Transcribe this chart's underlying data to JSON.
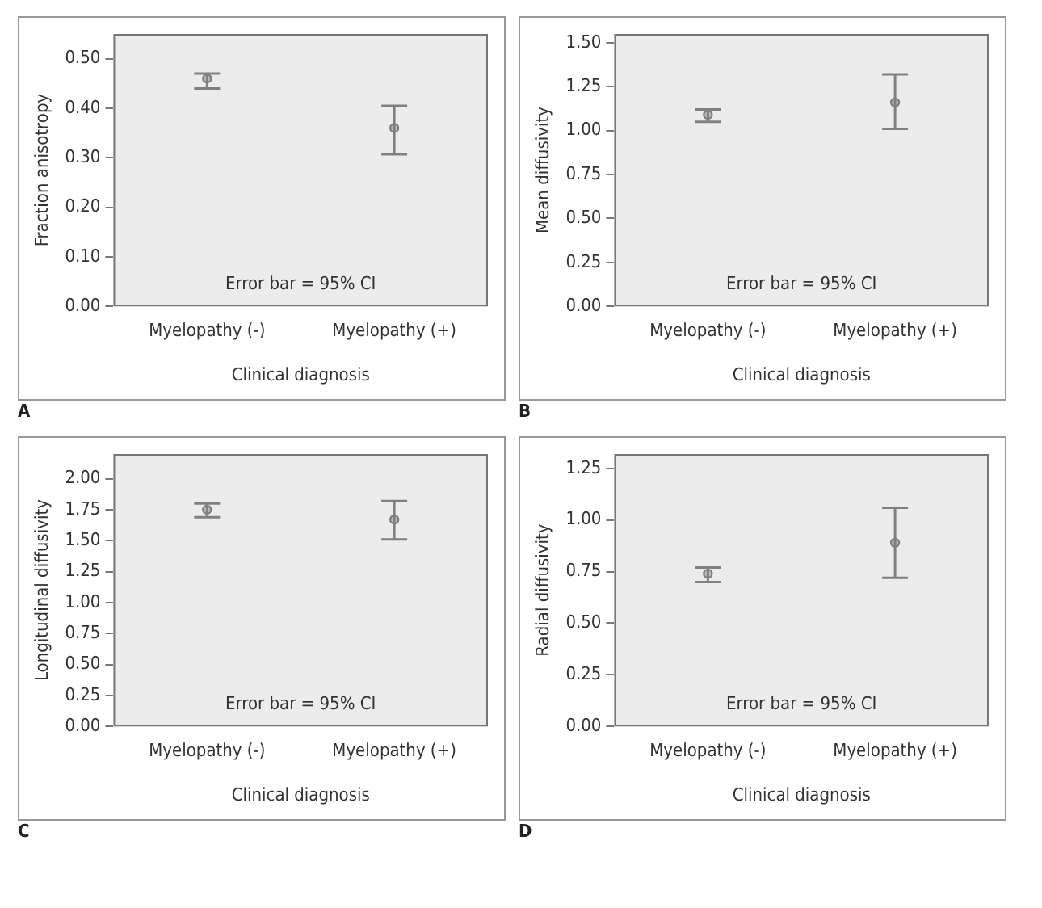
{
  "chart_data": [
    {
      "type": "scatter",
      "xlabel": "Clinical diagnosis",
      "ylabel": "Fraction anisotropy",
      "categories": [
        "Myelopathy (-)",
        "Myelopathy (+)"
      ],
      "values": [
        0.46,
        0.36
      ],
      "errors": [
        [
          0.44,
          0.47
        ],
        [
          0.307,
          0.405
        ]
      ],
      "color": "#808080",
      "marker": "circle",
      "ylim": [
        0,
        0.55
      ],
      "yticks": [
        {
          "value": 0,
          "label": "0.00"
        },
        {
          "value": 0.1,
          "label": "0.10"
        },
        {
          "value": 0.2,
          "label": "0.20"
        },
        {
          "value": 0.3,
          "label": "0.30"
        },
        {
          "value": 0.4,
          "label": "0.40"
        },
        {
          "value": 0.5,
          "label": "0.50"
        }
      ],
      "grid": false,
      "legend": false,
      "annotations": [
        "Error bar = 95% CI",
        "A"
      ]
    },
    {
      "type": "scatter",
      "xlabel": "Clinical diagnosis",
      "ylabel": "Mean diffusivity",
      "categories": [
        "Myelopathy (-)",
        "Myelopathy (+)"
      ],
      "values": [
        1.09,
        1.16
      ],
      "errors": [
        [
          1.05,
          1.12
        ],
        [
          1.01,
          1.32
        ]
      ],
      "color": "#808080",
      "marker": "circle",
      "ylim": [
        0,
        1.55
      ],
      "yticks": [
        {
          "value": 0,
          "label": "0.00"
        },
        {
          "value": 0.25,
          "label": "0.25"
        },
        {
          "value": 0.5,
          "label": "0.50"
        },
        {
          "value": 0.75,
          "label": "0.75"
        },
        {
          "value": 1,
          "label": "1.00"
        },
        {
          "value": 1.25,
          "label": "1.25"
        },
        {
          "value": 1.5,
          "label": "1.50"
        }
      ],
      "grid": false,
      "legend": false,
      "annotations": [
        "Error bar = 95% CI",
        "B"
      ]
    },
    {
      "type": "scatter",
      "xlabel": "Clinical diagnosis",
      "ylabel": "Longitudinal diffusivity",
      "categories": [
        "Myelopathy (-)",
        "Myelopathy (+)"
      ],
      "values": [
        1.75,
        1.67
      ],
      "errors": [
        [
          1.69,
          1.8
        ],
        [
          1.51,
          1.82
        ]
      ],
      "color": "#808080",
      "marker": "circle",
      "ylim": [
        0,
        2.2
      ],
      "yticks": [
        {
          "value": 0,
          "label": "0.00"
        },
        {
          "value": 0.25,
          "label": "0.25"
        },
        {
          "value": 0.5,
          "label": "0.50"
        },
        {
          "value": 0.75,
          "label": "0.75"
        },
        {
          "value": 1,
          "label": "1.00"
        },
        {
          "value": 1.25,
          "label": "1.25"
        },
        {
          "value": 1.5,
          "label": "1.50"
        },
        {
          "value": 1.75,
          "label": "1.75"
        },
        {
          "value": 2,
          "label": "2.00"
        }
      ],
      "grid": false,
      "legend": false,
      "annotations": [
        "Error bar = 95% CI",
        "C"
      ]
    },
    {
      "type": "scatter",
      "xlabel": "Clinical diagnosis",
      "ylabel": "Radial diffusivity",
      "categories": [
        "Myelopathy (-)",
        "Myelopathy (+)"
      ],
      "values": [
        0.74,
        0.89
      ],
      "errors": [
        [
          0.7,
          0.77
        ],
        [
          0.72,
          1.06
        ]
      ],
      "color": "#808080",
      "marker": "circle",
      "ylim": [
        0,
        1.32
      ],
      "yticks": [
        {
          "value": 0,
          "label": "0.00"
        },
        {
          "value": 0.25,
          "label": "0.25"
        },
        {
          "value": 0.5,
          "label": "0.50"
        },
        {
          "value": 0.75,
          "label": "0.75"
        },
        {
          "value": 1,
          "label": "1.00"
        },
        {
          "value": 1.25,
          "label": "1.25"
        }
      ],
      "grid": false,
      "legend": false,
      "annotations": [
        "Error bar = 95% CI",
        "D"
      ]
    }
  ]
}
